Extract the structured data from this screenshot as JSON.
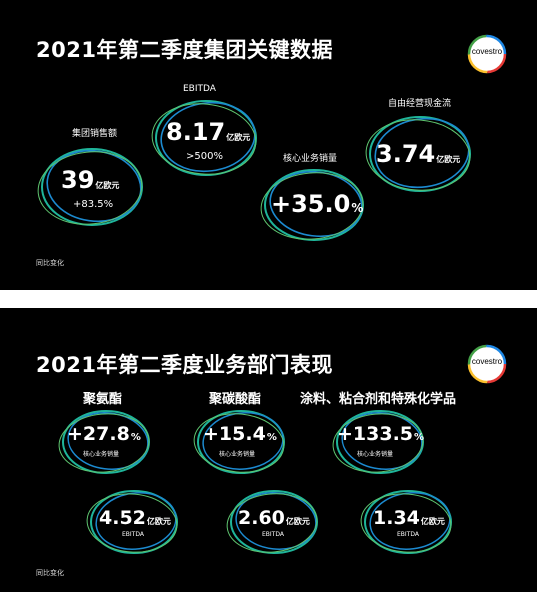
{
  "slide1": {
    "title": "2021年第二季度集团关键数据",
    "logo_text": "covestro",
    "footnote": "同比变化",
    "sales": {
      "label": "集团销售额",
      "value": "39",
      "unit": "亿欧元",
      "change": "+83.5%"
    },
    "ebitda": {
      "label": "EBITDA",
      "value": "8.17",
      "unit": "亿欧元",
      "change": ">500%"
    },
    "core_volume": {
      "label": "核心业务销量",
      "value": "+35.0",
      "unit": "%"
    },
    "fcf": {
      "label": "自由经营现金流",
      "value": "3.74",
      "unit": "亿欧元"
    }
  },
  "slide2": {
    "title": "2021年第二季度业务部门表现",
    "logo_text": "covestro",
    "footnote": "同比变化",
    "segments": [
      {
        "name": "聚氨酯",
        "volume_value": "+27.8",
        "volume_unit": "%",
        "volume_label": "核心业务销量",
        "ebitda_value": "4.52",
        "ebitda_unit": "亿欧元",
        "ebitda_label": "EBITDA"
      },
      {
        "name": "聚碳酸酯",
        "volume_value": "+15.4",
        "volume_unit": "%",
        "volume_label": "核心业务销量",
        "ebitda_value": "2.60",
        "ebitda_unit": "亿欧元",
        "ebitda_label": "EBITDA"
      },
      {
        "name": "涂料、粘合剂和特殊化学品",
        "volume_value": "+133.5",
        "volume_unit": "%",
        "volume_label": "核心业务销量",
        "ebitda_value": "1.34",
        "ebitda_unit": "亿欧元",
        "ebitda_label": "EBITDA"
      }
    ]
  },
  "colors": {
    "background": "#000000",
    "text": "#ffffff",
    "ring_teal": "#1fb59a",
    "ring_blue": "#1c8ad0",
    "ring_green": "#5ec46f"
  }
}
